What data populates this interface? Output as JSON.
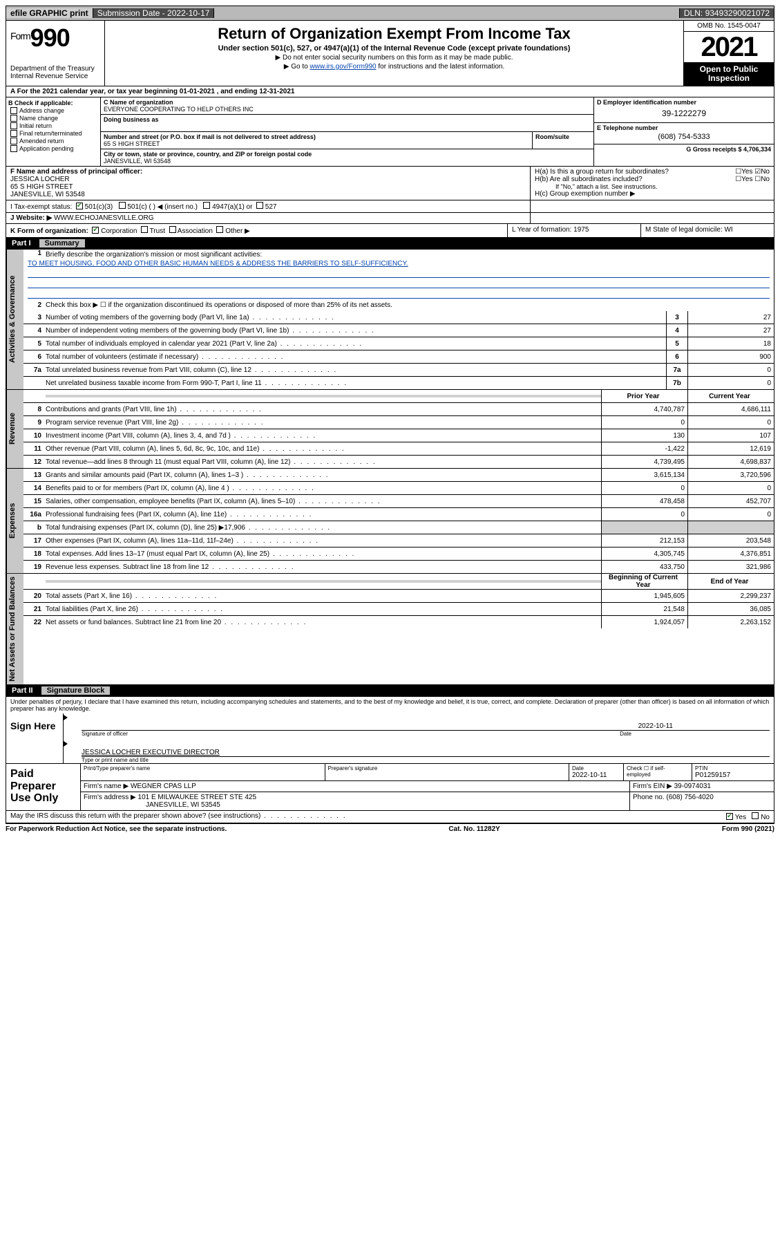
{
  "topbar": {
    "efile": "efile GRAPHIC print",
    "submission": "Submission Date - 2022-10-17",
    "dln": "DLN: 93493290021072"
  },
  "header": {
    "form_prefix": "Form",
    "form_num": "990",
    "dept": "Department of the Treasury",
    "irs": "Internal Revenue Service",
    "title": "Return of Organization Exempt From Income Tax",
    "sub": "Under section 501(c), 527, or 4947(a)(1) of the Internal Revenue Code (except private foundations)",
    "note1": "▶ Do not enter social security numbers on this form as it may be made public.",
    "note2_pre": "▶ Go to ",
    "note2_link": "www.irs.gov/Form990",
    "note2_post": " for instructions and the latest information.",
    "omb": "OMB No. 1545-0047",
    "year": "2021",
    "open": "Open to Public Inspection"
  },
  "row_a": "A For the 2021 calendar year, or tax year beginning 01-01-2021   , and ending 12-31-2021",
  "col_b": {
    "hdr": "B Check if applicable:",
    "items": [
      "Address change",
      "Name change",
      "Initial return",
      "Final return/terminated",
      "Amended return",
      "Application pending"
    ]
  },
  "col_c": {
    "c_lbl": "C Name of organization",
    "name": "EVERYONE COOPERATING TO HELP OTHERS INC",
    "dba_lbl": "Doing business as",
    "addr_lbl": "Number and street (or P.O. box if mail is not delivered to street address)",
    "room_lbl": "Room/suite",
    "addr": "65 S HIGH STREET",
    "city_lbl": "City or town, state or province, country, and ZIP or foreign postal code",
    "city": "JANESVILLE, WI  53548"
  },
  "col_d": {
    "d_lbl": "D Employer identification number",
    "ein": "39-1222279",
    "e_lbl": "E Telephone number",
    "phone": "(608) 754-5333",
    "g_lbl": "G Gross receipts $ 4,706,334"
  },
  "row_f": {
    "f_lbl": "F Name and address of principal officer:",
    "name": "JESSICA LOCHER",
    "addr1": "65 S HIGH STREET",
    "addr2": "JANESVILLE, WI  53548"
  },
  "row_h": {
    "ha": "H(a)  Is this a group return for subordinates?",
    "hb": "H(b)  Are all subordinates included?",
    "hb_note": "If \"No,\" attach a list. See instructions.",
    "hc": "H(c)  Group exemption number ▶"
  },
  "row_i": {
    "lbl": "I   Tax-exempt status:",
    "o1": "501(c)(3)",
    "o2": "501(c) (  ) ◀ (insert no.)",
    "o3": "4947(a)(1) or",
    "o4": "527"
  },
  "row_j": {
    "lbl": "J   Website: ▶",
    "val": "WWW.ECHOJANESVILLE.ORG"
  },
  "row_k": {
    "lbl": "K Form of organization:",
    "o1": "Corporation",
    "o2": "Trust",
    "o3": "Association",
    "o4": "Other ▶",
    "l": "L Year of formation: 1975",
    "m": "M State of legal domicile: WI"
  },
  "part1": {
    "hdr_num": "Part I",
    "hdr_txt": "Summary",
    "side_gov": "Activities & Governance",
    "side_rev": "Revenue",
    "side_exp": "Expenses",
    "side_net": "Net Assets or Fund Balances",
    "l1": "Briefly describe the organization's mission or most significant activities:",
    "mission": "TO MEET HOUSING, FOOD AND OTHER BASIC HUMAN NEEDS & ADDRESS THE BARRIERS TO SELF-SUFFICIENCY.",
    "l2": "Check this box ▶ ☐  if the organization discontinued its operations or disposed of more than 25% of its net assets.",
    "rows_gov": [
      {
        "n": "3",
        "t": "Number of voting members of the governing body (Part VI, line 1a)",
        "b": "3",
        "v": "27"
      },
      {
        "n": "4",
        "t": "Number of independent voting members of the governing body (Part VI, line 1b)",
        "b": "4",
        "v": "27"
      },
      {
        "n": "5",
        "t": "Total number of individuals employed in calendar year 2021 (Part V, line 2a)",
        "b": "5",
        "v": "18"
      },
      {
        "n": "6",
        "t": "Total number of volunteers (estimate if necessary)",
        "b": "6",
        "v": "900"
      },
      {
        "n": "7a",
        "t": "Total unrelated business revenue from Part VIII, column (C), line 12",
        "b": "7a",
        "v": "0"
      },
      {
        "n": "",
        "t": "Net unrelated business taxable income from Form 990-T, Part I, line 11",
        "b": "7b",
        "v": "0"
      }
    ],
    "col_hdr_prior": "Prior Year",
    "col_hdr_curr": "Current Year",
    "rows_rev": [
      {
        "n": "8",
        "t": "Contributions and grants (Part VIII, line 1h)",
        "p": "4,740,787",
        "c": "4,686,111"
      },
      {
        "n": "9",
        "t": "Program service revenue (Part VIII, line 2g)",
        "p": "0",
        "c": "0"
      },
      {
        "n": "10",
        "t": "Investment income (Part VIII, column (A), lines 3, 4, and 7d )",
        "p": "130",
        "c": "107"
      },
      {
        "n": "11",
        "t": "Other revenue (Part VIII, column (A), lines 5, 6d, 8c, 9c, 10c, and 11e)",
        "p": "-1,422",
        "c": "12,619"
      },
      {
        "n": "12",
        "t": "Total revenue—add lines 8 through 11 (must equal Part VIII, column (A), line 12)",
        "p": "4,739,495",
        "c": "4,698,837"
      }
    ],
    "rows_exp": [
      {
        "n": "13",
        "t": "Grants and similar amounts paid (Part IX, column (A), lines 1–3 )",
        "p": "3,615,134",
        "c": "3,720,596"
      },
      {
        "n": "14",
        "t": "Benefits paid to or for members (Part IX, column (A), line 4 )",
        "p": "0",
        "c": "0"
      },
      {
        "n": "15",
        "t": "Salaries, other compensation, employee benefits (Part IX, column (A), lines 5–10)",
        "p": "478,458",
        "c": "452,707"
      },
      {
        "n": "16a",
        "t": "Professional fundraising fees (Part IX, column (A), line 11e)",
        "p": "0",
        "c": "0"
      },
      {
        "n": "b",
        "t": "Total fundraising expenses (Part IX, column (D), line 25) ▶17,906",
        "p": "",
        "c": "",
        "grey": true
      },
      {
        "n": "17",
        "t": "Other expenses (Part IX, column (A), lines 11a–11d, 11f–24e)",
        "p": "212,153",
        "c": "203,548"
      },
      {
        "n": "18",
        "t": "Total expenses. Add lines 13–17 (must equal Part IX, column (A), line 25)",
        "p": "4,305,745",
        "c": "4,376,851"
      },
      {
        "n": "19",
        "t": "Revenue less expenses. Subtract line 18 from line 12",
        "p": "433,750",
        "c": "321,986"
      }
    ],
    "col_hdr_beg": "Beginning of Current Year",
    "col_hdr_end": "End of Year",
    "rows_net": [
      {
        "n": "20",
        "t": "Total assets (Part X, line 16)",
        "p": "1,945,605",
        "c": "2,299,237"
      },
      {
        "n": "21",
        "t": "Total liabilities (Part X, line 26)",
        "p": "21,548",
        "c": "36,085"
      },
      {
        "n": "22",
        "t": "Net assets or fund balances. Subtract line 21 from line 20",
        "p": "1,924,057",
        "c": "2,263,152"
      }
    ]
  },
  "part2": {
    "hdr_num": "Part II",
    "hdr_txt": "Signature Block",
    "decl": "Under penalties of perjury, I declare that I have examined this return, including accompanying schedules and statements, and to the best of my knowledge and belief, it is true, correct, and complete. Declaration of preparer (other than officer) is based on all information of which preparer has any knowledge.",
    "sign_here": "Sign Here",
    "sig_of": "Signature of officer",
    "date_lbl": "Date",
    "sig_date": "2022-10-11",
    "officer": "JESSICA LOCHER  EXECUTIVE DIRECTOR",
    "officer_sub": "Type or print name and title",
    "paid": "Paid Preparer Use Only",
    "pt_name_lbl": "Print/Type preparer's name",
    "pt_sig_lbl": "Preparer's signature",
    "pt_date_lbl": "Date",
    "pt_date": "2022-10-11",
    "pt_check": "Check ☐ if self-employed",
    "ptin_lbl": "PTIN",
    "ptin": "P01259157",
    "firm_name_lbl": "Firm's name    ▶",
    "firm_name": "WEGNER CPAS LLP",
    "firm_ein_lbl": "Firm's EIN ▶",
    "firm_ein": "39-0974031",
    "firm_addr_lbl": "Firm's address ▶",
    "firm_addr1": "101 E MILWAUKEE STREET STE 425",
    "firm_addr2": "JANESVILLE, WI  53545",
    "firm_phone_lbl": "Phone no.",
    "firm_phone": "(608) 756-4020",
    "may_irs": "May the IRS discuss this return with the preparer shown above? (see instructions)",
    "yes": "Yes",
    "no": "No"
  },
  "footer": {
    "left": "For Paperwork Reduction Act Notice, see the separate instructions.",
    "mid": "Cat. No. 11282Y",
    "right": "Form 990 (2021)"
  }
}
